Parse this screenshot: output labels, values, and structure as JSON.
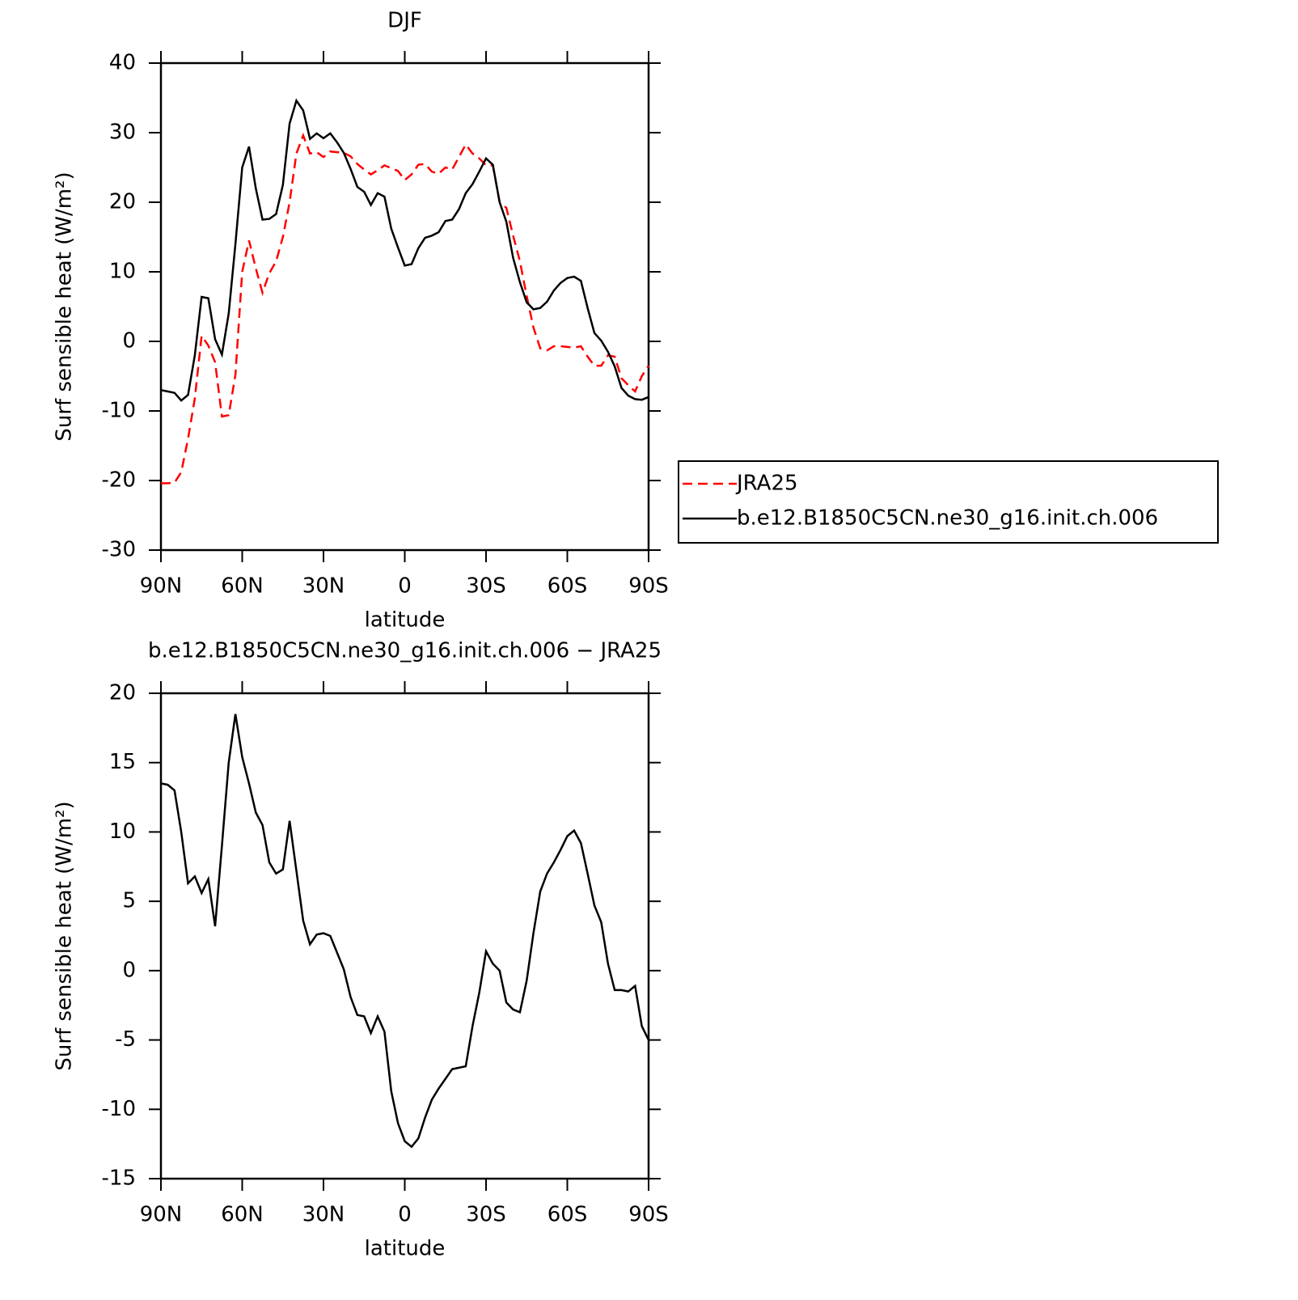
{
  "chart_data": [
    {
      "type": "line",
      "title": "DJF",
      "xlabel": "latitude",
      "ylabel": "Surf sensible heat (W/m²)",
      "x": [
        90,
        87.5,
        85,
        82.5,
        80,
        77.5,
        75,
        72.5,
        70,
        67.5,
        65,
        62.5,
        60,
        57.5,
        55,
        52.5,
        50,
        47.5,
        45,
        42.5,
        40,
        37.5,
        35,
        32.5,
        30,
        27.5,
        25,
        22.5,
        20,
        17.5,
        15,
        12.5,
        10,
        7.5,
        5,
        2.5,
        0,
        -2.5,
        -5,
        -7.5,
        -10,
        -12.5,
        -15,
        -17.5,
        -20,
        -22.5,
        -25,
        -27.5,
        -30,
        -32.5,
        -35,
        -37.5,
        -40,
        -42.5,
        -45,
        -47.5,
        -50,
        -52.5,
        -55,
        -57.5,
        -60,
        -62.5,
        -65,
        -67.5,
        -70,
        -72.5,
        -75,
        -77.5,
        -80,
        -82.5,
        -85,
        -87.5,
        -90
      ],
      "series": [
        {
          "name": "JRA25",
          "color": "#ff0000",
          "dashed": true,
          "values": [
            -20.4,
            -20.4,
            -20.3,
            -18.8,
            -14,
            -8.2,
            0.8,
            -0.6,
            -3,
            -10.8,
            -10.6,
            -4.8,
            10,
            14.5,
            10.5,
            7,
            9.8,
            11.5,
            15,
            20,
            27,
            29.6,
            27,
            27.2,
            26.5,
            27.3,
            27.2,
            27.1,
            26.6,
            25.5,
            24.7,
            24,
            24.6,
            25.3,
            24.9,
            24.5,
            23.2,
            24,
            25.4,
            25.5,
            24.4,
            24.1,
            25,
            24.7,
            26.5,
            28.3,
            27,
            26.3,
            25.3,
            25.3,
            20,
            19.2,
            15.2,
            11.5,
            6.5,
            2,
            -1,
            -1.3,
            -0.7,
            -0.7,
            -0.8,
            -0.9,
            -0.7,
            -2.2,
            -3.5,
            -3.5,
            -2,
            -2.2,
            -5.3,
            -6.3,
            -7.2,
            -5,
            -3.5
          ]
        },
        {
          "name": "b.e12.B1850C5CN.ne30_g16.init.ch.006",
          "color": "#000000",
          "dashed": false,
          "values": [
            -7,
            -7.2,
            -7.4,
            -8.5,
            -7.7,
            -2,
            6.4,
            6.2,
            0.3,
            -1.9,
            4,
            14,
            25,
            28,
            22,
            17.5,
            17.6,
            18.3,
            22.5,
            31.3,
            34.6,
            33.2,
            29.1,
            29.9,
            29.2,
            29.9,
            28.6,
            27.1,
            24.8,
            22.2,
            21.5,
            19.6,
            21.3,
            20.8,
            16.2,
            13.5,
            10.9,
            11.1,
            13.4,
            14.9,
            15.2,
            15.7,
            17.3,
            17.5,
            19,
            21.3,
            22.6,
            24.4,
            26.3,
            25.4,
            20,
            17.2,
            12,
            8.5,
            5.6,
            4.6,
            4.8,
            5.7,
            7.3,
            8.4,
            9.1,
            9.3,
            8.7,
            4.8,
            1.2,
            0.1,
            -1.5,
            -3.6,
            -6.7,
            -7.8,
            -8.3,
            -8.4,
            -8
          ]
        }
      ],
      "xlim": [
        90,
        -90
      ],
      "xticks": [
        {
          "value": 90,
          "label": "90N"
        },
        {
          "value": 60,
          "label": "60N"
        },
        {
          "value": 30,
          "label": "30N"
        },
        0,
        {
          "value": -30,
          "label": "30S"
        },
        {
          "value": -60,
          "label": "60S"
        },
        {
          "value": -90,
          "label": "90S"
        }
      ],
      "ylim": [
        -30,
        40
      ],
      "yticks": [
        -30,
        -20,
        -10,
        0,
        10,
        20,
        30,
        40
      ],
      "legend": "right"
    },
    {
      "type": "line",
      "title": "b.e12.B1850C5CN.ne30_g16.init.ch.006 − JRA25",
      "xlabel": "latitude",
      "ylabel": "Surf sensible heat (W/m²)",
      "x": [
        90,
        87.5,
        85,
        82.5,
        80,
        77.5,
        75,
        72.5,
        70,
        67.5,
        65,
        62.5,
        60,
        57.5,
        55,
        52.5,
        50,
        47.5,
        45,
        42.5,
        40,
        37.5,
        35,
        32.5,
        30,
        27.5,
        25,
        22.5,
        20,
        17.5,
        15,
        12.5,
        10,
        7.5,
        5,
        2.5,
        0,
        -2.5,
        -5,
        -7.5,
        -10,
        -12.5,
        -15,
        -17.5,
        -20,
        -22.5,
        -25,
        -27.5,
        -30,
        -32.5,
        -35,
        -37.5,
        -40,
        -42.5,
        -45,
        -47.5,
        -50,
        -52.5,
        -55,
        -57.5,
        -60,
        -62.5,
        -65,
        -67.5,
        -70,
        -72.5,
        -75,
        -77.5,
        -80,
        -82.5,
        -85,
        -87.5,
        -90
      ],
      "values": [
        13.5,
        13.4,
        13,
        10,
        6.3,
        6.8,
        5.6,
        6.6,
        3.2,
        9,
        15,
        18.5,
        15.4,
        13.5,
        11.4,
        10.5,
        7.8,
        7,
        7.3,
        10.8,
        7.2,
        3.6,
        1.9,
        2.6,
        2.7,
        2.5,
        1.3,
        0.1,
        -1.9,
        -3.2,
        -3.3,
        -4.5,
        -3.3,
        -4.4,
        -8.7,
        -11,
        -12.3,
        -12.7,
        -12.1,
        -10.6,
        -9.3,
        -8.5,
        -7.8,
        -7.1,
        -7,
        -6.9,
        -4,
        -1.6,
        1.4,
        0.5,
        0,
        -2.3,
        -2.8,
        -3,
        -0.7,
        2.7,
        5.7,
        7,
        7.8,
        8.7,
        9.7,
        10.1,
        9.2,
        7,
        4.7,
        3.5,
        0.5,
        -1.4,
        -1.4,
        -1.5,
        -1.1,
        -4,
        -5
      ],
      "color": "#000000",
      "xlim": [
        90,
        -90
      ],
      "xticks": [
        {
          "value": 90,
          "label": "90N"
        },
        {
          "value": 60,
          "label": "60N"
        },
        {
          "value": 30,
          "label": "30N"
        },
        0,
        {
          "value": -30,
          "label": "30S"
        },
        {
          "value": -60,
          "label": "60S"
        },
        {
          "value": -90,
          "label": "90S"
        }
      ],
      "ylim": [
        -15,
        20
      ],
      "yticks": [
        -15,
        -10,
        -5,
        0,
        5,
        10,
        15,
        20
      ]
    }
  ]
}
